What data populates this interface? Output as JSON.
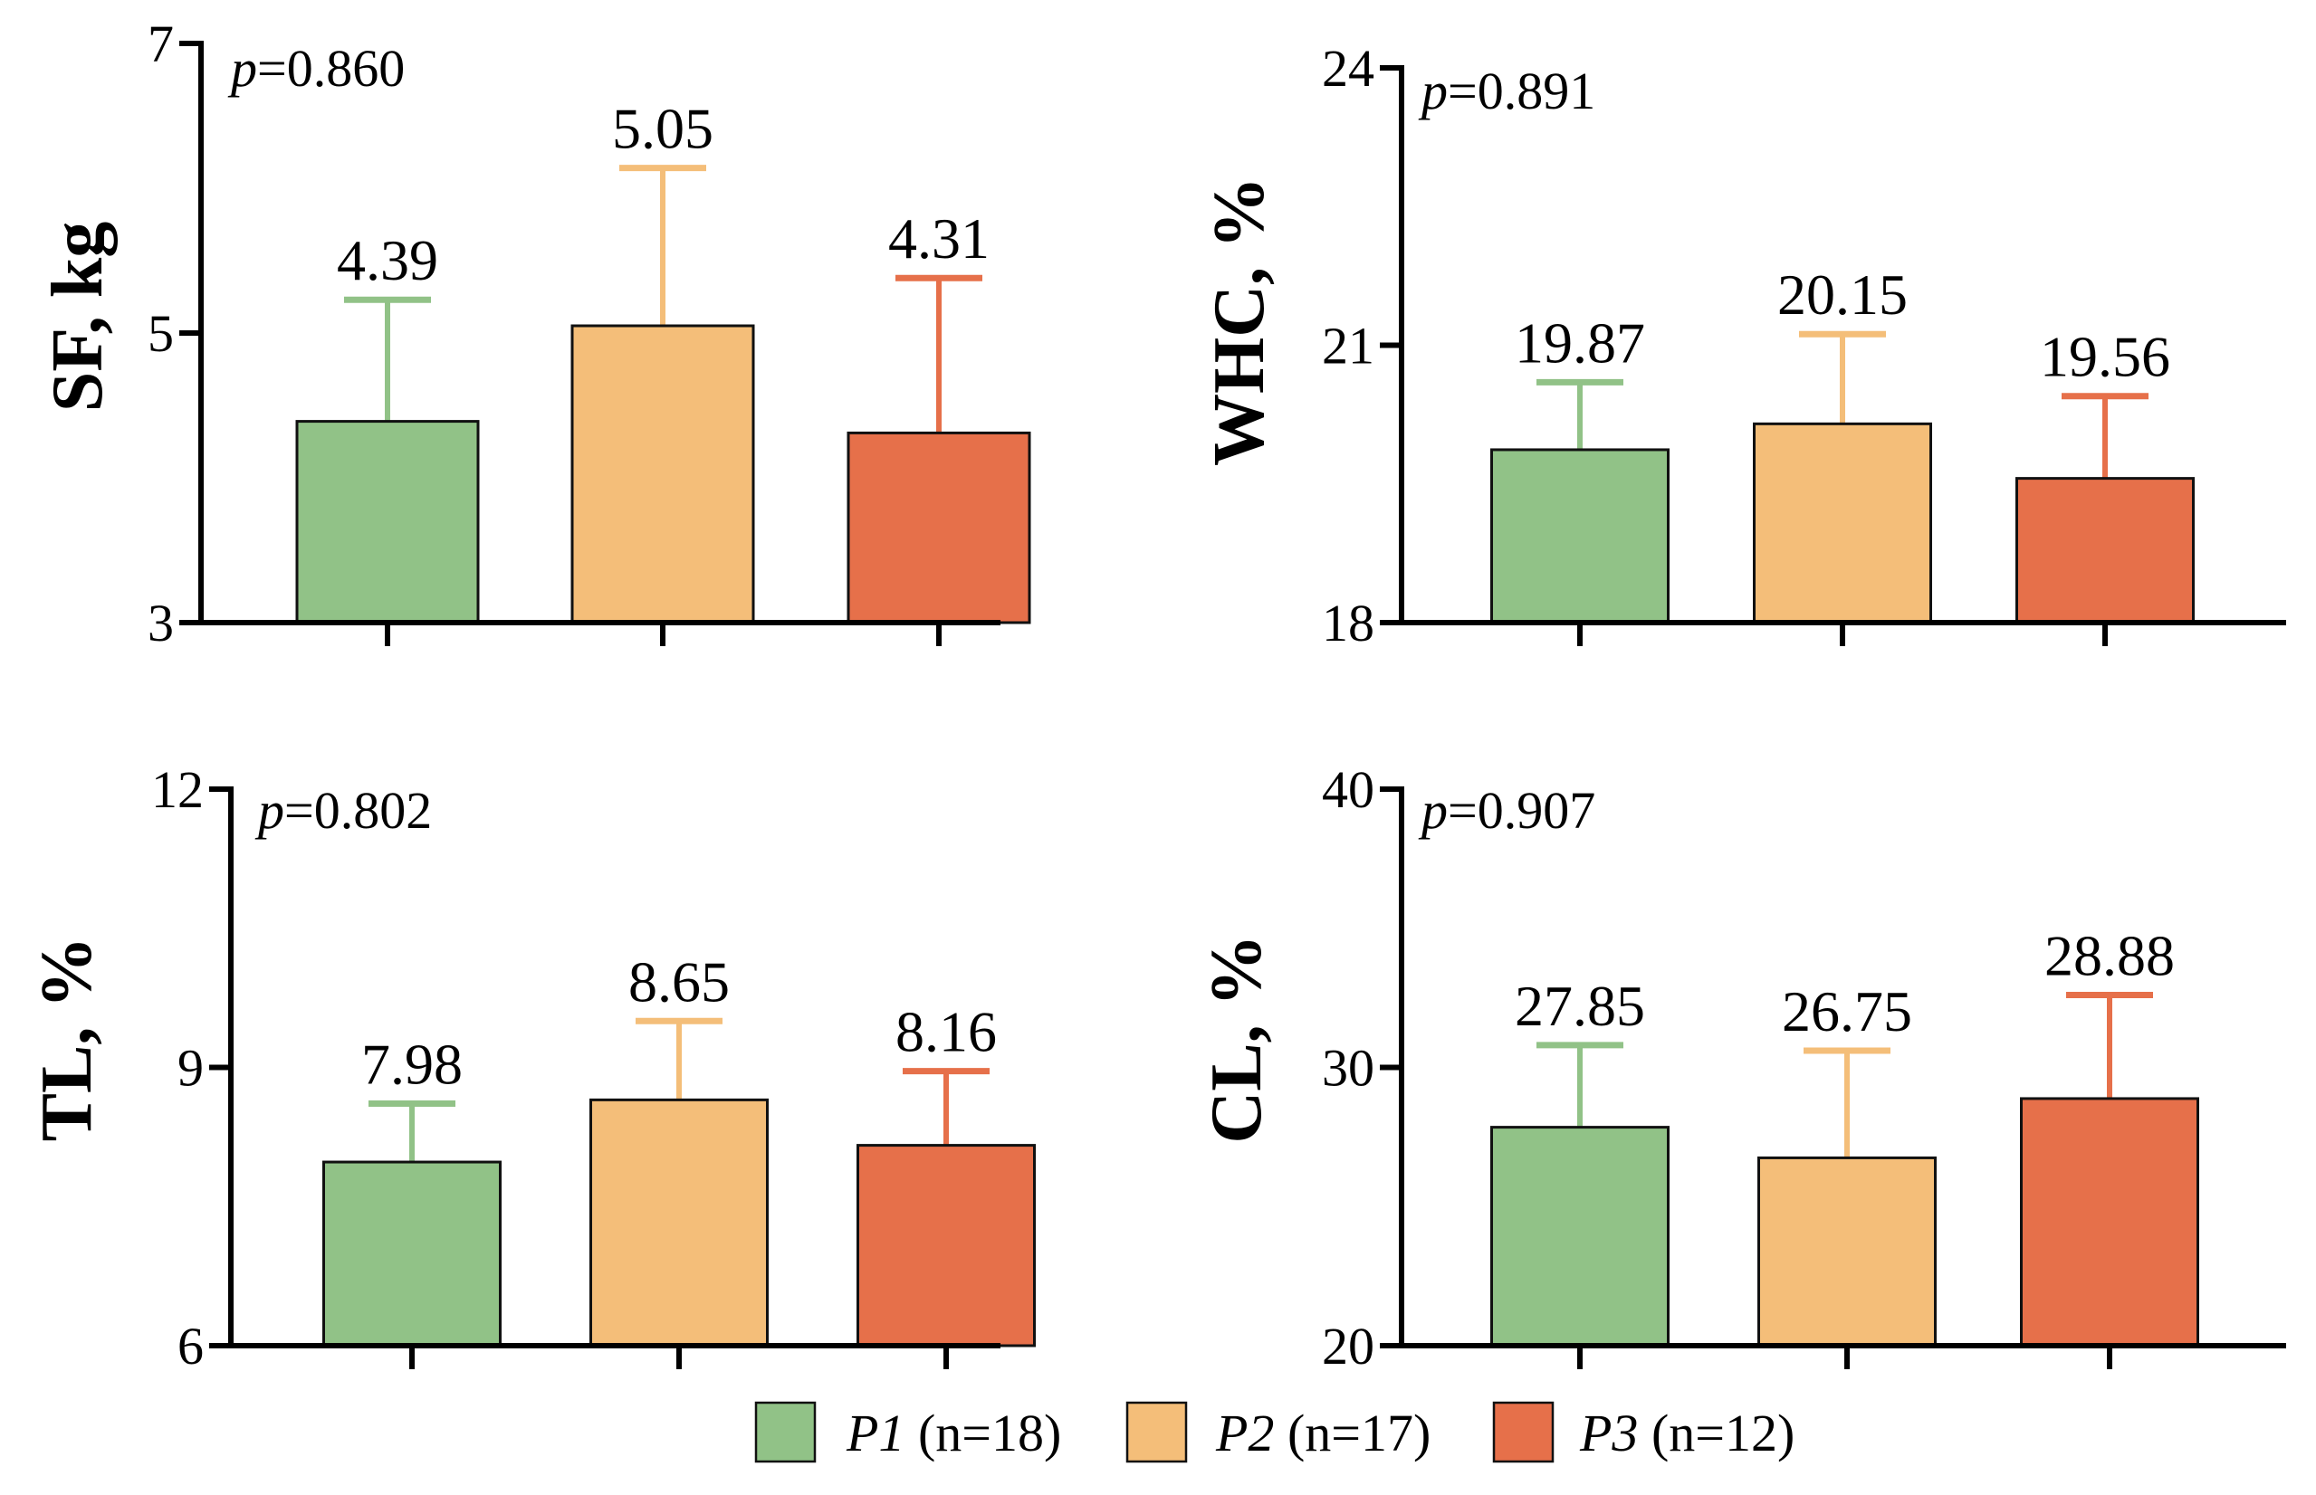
{
  "legend": [
    {
      "name": "P1",
      "n_label": "(n=18)",
      "color": "#91C287"
    },
    {
      "name": "P2",
      "n_label": "(n=17)",
      "color": "#F4BE79"
    },
    {
      "name": "P3",
      "n_label": "(n=12)",
      "color": "#E6704A"
    }
  ],
  "chart_data": [
    {
      "type": "bar",
      "ylabel": "SF, kg",
      "p_prefix": "p",
      "p_value": "=0.860",
      "ylim": [
        3,
        7
      ],
      "yticks": [
        3,
        5,
        7
      ],
      "categories": [
        "P1",
        "P2",
        "P3"
      ],
      "values": [
        4.39,
        5.05,
        4.31
      ],
      "value_labels": [
        "4.39",
        "5.05",
        "4.31"
      ],
      "error_upper": [
        5.23,
        6.14,
        5.38
      ]
    },
    {
      "type": "bar",
      "ylabel": "WHC, %",
      "p_prefix": "p",
      "p_value": "=0.891",
      "ylim": [
        18,
        24
      ],
      "yticks": [
        18,
        21,
        24
      ],
      "categories": [
        "P1",
        "P2",
        "P3"
      ],
      "values": [
        19.87,
        20.15,
        19.56
      ],
      "value_labels": [
        "19.87",
        "20.15",
        "19.56"
      ],
      "error_upper": [
        20.6,
        21.12,
        20.45
      ]
    },
    {
      "type": "bar",
      "ylabel": "TL, %",
      "p_prefix": "p",
      "p_value": "=0.802",
      "ylim": [
        6,
        12
      ],
      "yticks": [
        6,
        9,
        12
      ],
      "categories": [
        "P1",
        "P2",
        "P3"
      ],
      "values": [
        7.98,
        8.65,
        8.16
      ],
      "value_labels": [
        "7.98",
        "8.65",
        "8.16"
      ],
      "error_upper": [
        8.61,
        9.5,
        8.96
      ]
    },
    {
      "type": "bar",
      "ylabel": "CL, %",
      "p_prefix": "p",
      "p_value": "=0.907",
      "ylim": [
        20,
        40
      ],
      "yticks": [
        20,
        30,
        40
      ],
      "categories": [
        "P1",
        "P2",
        "P3"
      ],
      "values": [
        27.85,
        26.75,
        28.88
      ],
      "value_labels": [
        "27.85",
        "26.75",
        "28.88"
      ],
      "error_upper": [
        30.8,
        30.6,
        32.6
      ]
    }
  ]
}
